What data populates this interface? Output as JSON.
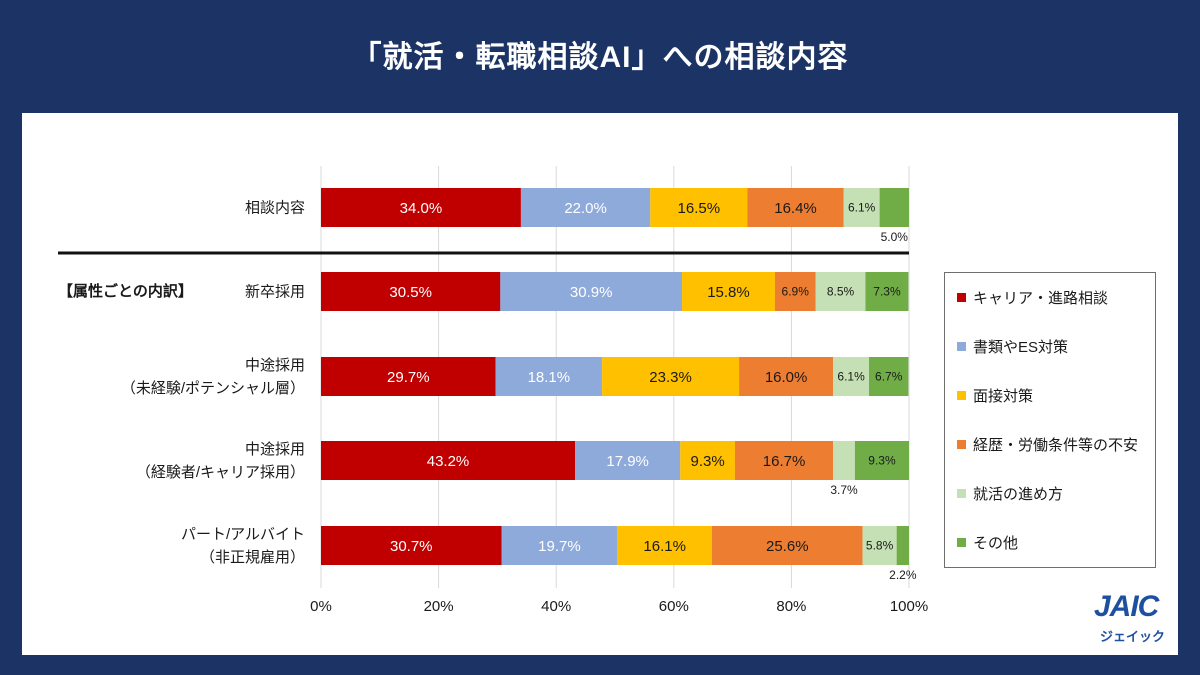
{
  "chart_data": {
    "type": "bar",
    "orientation": "horizontal",
    "stacked": true,
    "title": "「就活・転職相談AI」への相談内容",
    "unit": "%",
    "xlim": [
      0,
      100
    ],
    "xticks": [
      0,
      20,
      40,
      60,
      80,
      100
    ],
    "grid": true,
    "legend_position": "right",
    "categories": [
      [
        "相談内容"
      ],
      [
        "新卒採用"
      ],
      [
        "中途採用",
        "（未経験/ポテンシャル層）"
      ],
      [
        "中途採用",
        "（経験者/キャリア採用）"
      ],
      [
        "パート/アルバイト",
        "（非正規雇用）"
      ]
    ],
    "series": [
      {
        "name": "キャリア・進路相談",
        "color": "#c00000",
        "label_color": "#ffffff",
        "values": [
          34.0,
          30.5,
          29.7,
          43.2,
          30.7
        ]
      },
      {
        "name": "書類やES対策",
        "color": "#8eaadb",
        "label_color": "#ffffff",
        "values": [
          22.0,
          30.9,
          18.1,
          17.9,
          19.7
        ]
      },
      {
        "name": "面接対策",
        "color": "#ffc000",
        "label_color": "#1a1a1a",
        "values": [
          16.5,
          15.8,
          23.3,
          9.3,
          16.1
        ]
      },
      {
        "name": "経歴・労働条件等の不安",
        "color": "#ed7d31",
        "label_color": "#1a1a1a",
        "values": [
          16.4,
          6.9,
          16.0,
          16.7,
          25.6
        ]
      },
      {
        "name": "就活の進め方",
        "color": "#c5e0b4",
        "label_color": "#1a1a1a",
        "values": [
          6.1,
          8.5,
          6.1,
          3.7,
          5.8
        ]
      },
      {
        "name": "その他",
        "color": "#70ad47",
        "label_color": "#1a1a1a",
        "values": [
          5.0,
          7.3,
          6.7,
          9.3,
          2.2
        ]
      }
    ]
  },
  "section_label": "【属性ごとの内訳】",
  "logo": {
    "mark": "JAIC",
    "kana": "ジェイック"
  }
}
